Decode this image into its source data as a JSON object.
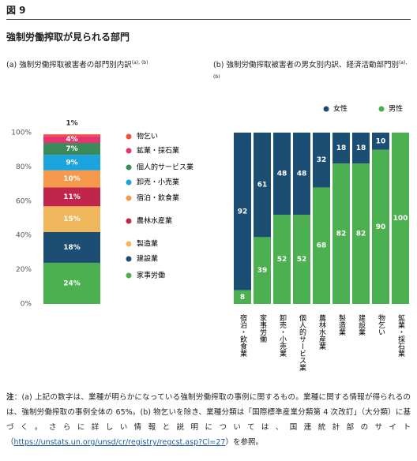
{
  "header": {
    "figure": "図 9",
    "title": "強制労働搾取が見られる部門"
  },
  "chart_data": [
    {
      "type": "bar",
      "stacked": true,
      "subtitle": "(a) 強制労働搾取被害者の部門別内訳",
      "subtitle_note": "(a), (b)",
      "categories": [
        null
      ],
      "ylim": [
        0,
        100
      ],
      "yticks": [
        {
          "value": 0,
          "label": "0%"
        },
        {
          "value": 20,
          "label": "20%"
        },
        {
          "value": 40,
          "label": "40%"
        },
        {
          "value": 60,
          "label": "60%"
        },
        {
          "value": 80,
          "label": "80%"
        },
        {
          "value": 100,
          "label": "100%"
        }
      ],
      "grid": false,
      "legend": "right",
      "series": [
        {
          "name": "家事労働",
          "color": "#4caf50",
          "values": [
            24
          ],
          "value_labels": [
            "24%"
          ]
        },
        {
          "name": "建設業",
          "color": "#1b4e72",
          "values": [
            18
          ],
          "value_labels": [
            "18%"
          ]
        },
        {
          "name": "製造業",
          "color": "#f0b65c",
          "values": [
            15
          ],
          "value_labels": [
            "15%"
          ]
        },
        {
          "name": "農林水産業",
          "color": "#c0254b",
          "values": [
            11
          ],
          "value_labels": [
            "11%"
          ]
        },
        {
          "name": "宿泊・飲食業",
          "color": "#f59a4c",
          "values": [
            10
          ],
          "value_labels": [
            "10%"
          ]
        },
        {
          "name": "卸売・小売業",
          "color": "#1aa3dc",
          "values": [
            9
          ],
          "value_labels": [
            "9%"
          ]
        },
        {
          "name": "個人的サービス業",
          "color": "#3b8a5b",
          "values": [
            7
          ],
          "value_labels": [
            "7%"
          ]
        },
        {
          "name": "鉱業・採石業",
          "color": "#e8336f",
          "values": [
            4
          ],
          "value_labels": [
            "4%"
          ]
        },
        {
          "name": "物乞い",
          "color": "#f0533a",
          "values": [
            1
          ],
          "value_labels": [
            "1%"
          ]
        }
      ]
    },
    {
      "type": "bar",
      "stacked": true,
      "subtitle": "(b) 強制労働搾取被害者の男女別内訳、経済活動部門別",
      "subtitle_note": "(a), (b)",
      "categories": [
        "宿泊・飲食業",
        "家事労働",
        "卸売・小売業",
        "個人的サービス業",
        "農林水産業",
        "製造業",
        "建設業",
        "物乞い",
        "鉱業・採石業"
      ],
      "ylim": [
        0,
        100
      ],
      "grid": false,
      "legend": "top",
      "series": [
        {
          "name": "男性",
          "color": "#4caf50",
          "values": [
            8,
            39,
            52,
            52,
            68,
            82,
            82,
            90,
            100
          ]
        },
        {
          "name": "女性",
          "color": "#1b4e72",
          "values": [
            92,
            61,
            48,
            48,
            32,
            18,
            18,
            10,
            0
          ]
        }
      ]
    }
  ],
  "note": {
    "label": "注",
    "text": "：(a) 上記の数字は、業種が明らかになっている強制労働搾取の事例に関するもの。業種に関する情報が得られるのは、強制労働搾取の事例全体の 65%。(b) 物乞いを除き、業種分類は「国際標準産業分類第 4 次改訂」（大分類）に基づく。さらに詳しい情報と説明については、国連統計部のサイト（",
    "link": "https://unstats.un.org/unsd/cr/registry/regcst.asp?Cl=27",
    "tail": "）を参照。"
  }
}
